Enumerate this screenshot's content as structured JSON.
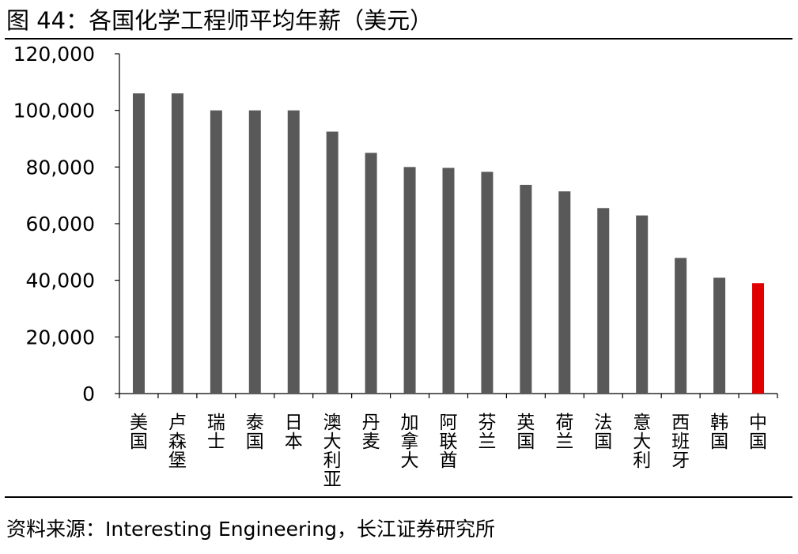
{
  "figure": {
    "title": "图 44：各国化学工程师平均年薪（美元）",
    "source": "资料来源：Interesting Engineering，长江证券研究所"
  },
  "colors": {
    "bar": "#595959",
    "highlight": "#e00000",
    "axis": "#000000",
    "text": "#000000"
  },
  "chart_data": {
    "type": "bar",
    "title": "各国化学工程师平均年薪（美元）",
    "categories": [
      "美国",
      "卢森堡",
      "瑞士",
      "泰国",
      "日本",
      "澳大利亚",
      "丹麦",
      "加拿大",
      "阿联酋",
      "芬兰",
      "英国",
      "荷兰",
      "法国",
      "意大利",
      "西班牙",
      "韩国",
      "中国"
    ],
    "values": [
      106000,
      106000,
      100000,
      100000,
      100000,
      92500,
      85000,
      80000,
      79700,
      78300,
      73700,
      71400,
      65500,
      62900,
      47900,
      40900,
      39000
    ],
    "highlight_category": "中国",
    "ylim": [
      0,
      120000
    ],
    "yticks": [
      0,
      20000,
      40000,
      60000,
      80000,
      100000,
      120000
    ],
    "ytick_labels": [
      "0",
      "20,000",
      "40,000",
      "60,000",
      "80,000",
      "100,000",
      "120,000"
    ],
    "grid": false,
    "legend": "none",
    "xlabel": "",
    "ylabel": ""
  }
}
